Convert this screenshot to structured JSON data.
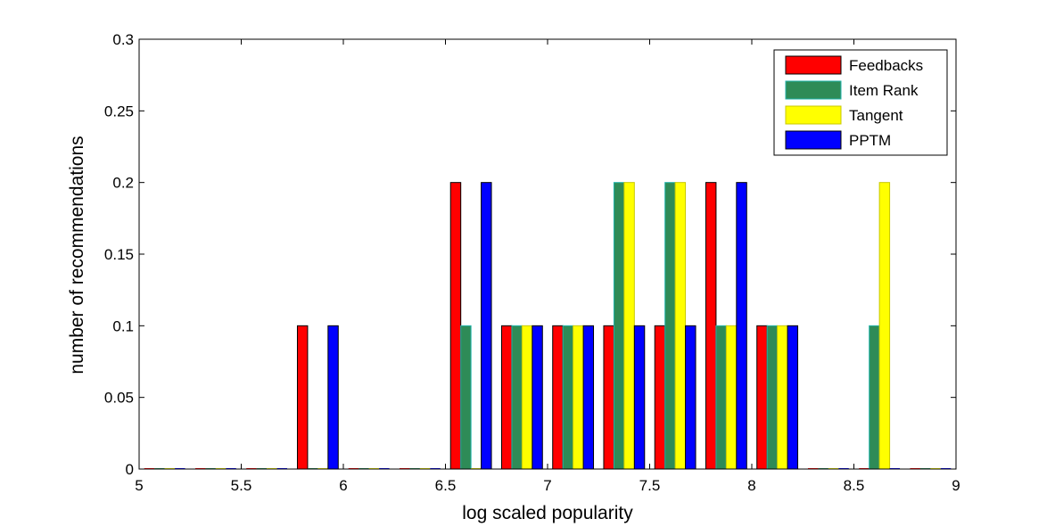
{
  "chart_data": {
    "type": "bar",
    "title": "",
    "xlabel": "log scaled popularity",
    "ylabel": "number of recommendations",
    "xlim": [
      5,
      9
    ],
    "ylim": [
      0,
      0.3
    ],
    "xticks": [
      "5",
      "5.5",
      "6",
      "6.5",
      "7",
      "7.5",
      "8",
      "8.5",
      "9"
    ],
    "yticks": [
      "0",
      "0.05",
      "0.1",
      "0.15",
      "0.2",
      "0.25",
      "0.3"
    ],
    "grid": false,
    "legend_position": "top-right",
    "bin_centers": [
      5.125,
      5.375,
      5.625,
      5.875,
      6.125,
      6.375,
      6.625,
      6.875,
      7.125,
      7.375,
      7.625,
      7.875,
      8.125,
      8.375,
      8.625,
      8.875
    ],
    "series": [
      {
        "name": "Feedbacks",
        "color": "#ff0000",
        "values": [
          0,
          0,
          0,
          0.1,
          0,
          0,
          0.2,
          0.1,
          0.1,
          0.1,
          0.1,
          0.2,
          0.1,
          0,
          0,
          0
        ]
      },
      {
        "name": "Item Rank",
        "color": "#2e8b57",
        "values": [
          0,
          0,
          0,
          0,
          0,
          0,
          0.1,
          0.1,
          0.1,
          0.2,
          0.2,
          0.1,
          0.1,
          0,
          0.1,
          0
        ]
      },
      {
        "name": "Tangent",
        "color": "#ffff00",
        "values": [
          0,
          0,
          0,
          0,
          0,
          0,
          0,
          0.1,
          0.1,
          0.2,
          0.2,
          0.1,
          0.1,
          0,
          0.2,
          0
        ]
      },
      {
        "name": "PPTM",
        "color": "#0000ff",
        "values": [
          0,
          0,
          0,
          0.1,
          0,
          0,
          0.2,
          0.1,
          0.1,
          0.1,
          0.1,
          0.2,
          0.1,
          0,
          0,
          0
        ]
      }
    ]
  }
}
